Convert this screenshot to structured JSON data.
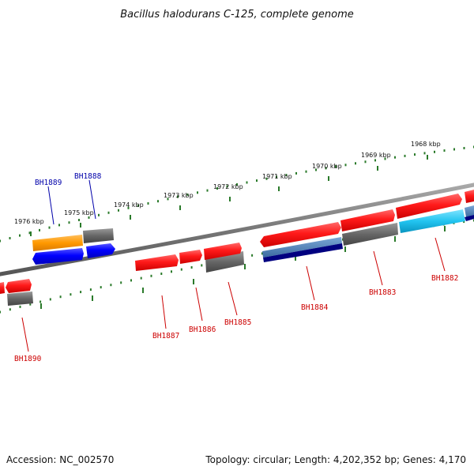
{
  "title": "Bacillus halodurans C-125, complete genome",
  "footer": {
    "accession": "Accession: NC_002570",
    "summary": "Topology: circular; Length: 4,202,352 bp; Genes: 4,170"
  },
  "scale": {
    "ticks": [
      "1968 kbp",
      "1969 kbp",
      "1970 kbp",
      "1971 kbp",
      "1972 kbp",
      "1973 kbp",
      "1974 kbp",
      "1975 kbp",
      "1976 kbp"
    ]
  },
  "genes": [
    {
      "label": "BH1882",
      "color": "#cc0000"
    },
    {
      "label": "BH1883",
      "color": "#cc0000"
    },
    {
      "label": "BH1884",
      "color": "#cc0000"
    },
    {
      "label": "BH1885",
      "color": "#cc0000"
    },
    {
      "label": "BH1886",
      "color": "#cc0000"
    },
    {
      "label": "BH1887",
      "color": "#cc0000"
    },
    {
      "label": "BH1888",
      "color": "#0000aa"
    },
    {
      "label": "BH1889",
      "color": "#0000aa"
    },
    {
      "label": "BH1890",
      "color": "#cc0000"
    }
  ],
  "colors": {
    "backbone": "#777777",
    "scale_dots": "#2a7a2a",
    "cds_red": "#ff1a1a",
    "cds_blue": "#0000ff",
    "cds_orange": "#ff9900",
    "cds_cyan": "#22c4f0",
    "cds_steel": "#4a7fb5",
    "cds_navy": "#000080",
    "cds_gray": "#666666"
  }
}
